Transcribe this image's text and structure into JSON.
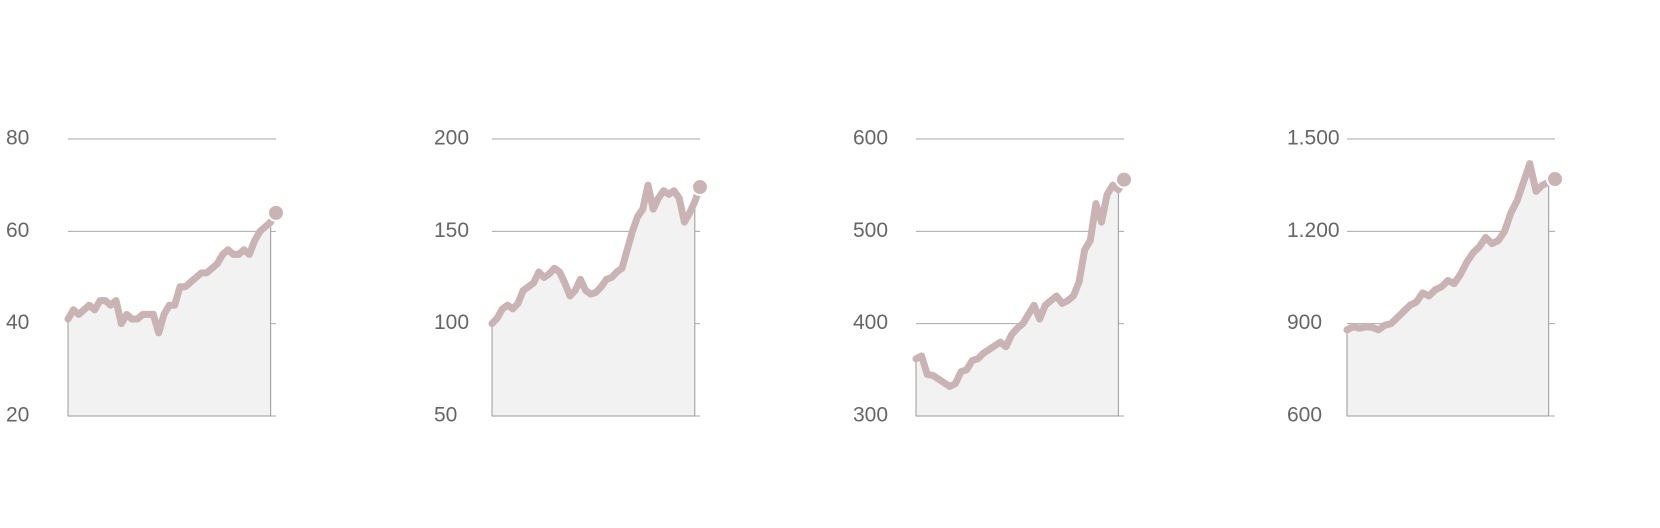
{
  "chart_data": [
    {
      "type": "line",
      "color": "#c9b3b5",
      "ylim": [
        20,
        80
      ],
      "yticks": [
        20,
        40,
        60,
        80
      ],
      "values": [
        41,
        43,
        42,
        43,
        44,
        43,
        45,
        45,
        44,
        45,
        40,
        42,
        41,
        41,
        42,
        42,
        42,
        38,
        42,
        44,
        44,
        48,
        48,
        49,
        50,
        51,
        51,
        52,
        53,
        55,
        56,
        55,
        55,
        56,
        55,
        58,
        60,
        61,
        62,
        64
      ]
    },
    {
      "type": "line",
      "color": "#c9b3b5",
      "ylim": [
        50,
        200
      ],
      "yticks": [
        50,
        100,
        150,
        200
      ],
      "values": [
        100,
        103,
        108,
        110,
        108,
        111,
        118,
        120,
        122,
        128,
        125,
        127,
        130,
        128,
        122,
        115,
        118,
        124,
        118,
        116,
        117,
        120,
        124,
        125,
        128,
        130,
        140,
        150,
        158,
        162,
        175,
        162,
        168,
        172,
        170,
        172,
        168,
        155,
        160,
        166,
        174
      ]
    },
    {
      "type": "line",
      "color": "#c9b3b5",
      "ylim": [
        300,
        600
      ],
      "yticks": [
        300,
        400,
        500,
        600
      ],
      "values": [
        362,
        365,
        345,
        344,
        340,
        336,
        332,
        335,
        348,
        350,
        360,
        362,
        368,
        372,
        376,
        380,
        375,
        388,
        395,
        400,
        410,
        420,
        405,
        420,
        425,
        430,
        422,
        425,
        430,
        445,
        480,
        490,
        530,
        510,
        540,
        550,
        545,
        556
      ]
    },
    {
      "type": "line",
      "color": "#c9b3b5",
      "ylim": [
        600,
        1500
      ],
      "yticks": [
        600,
        900,
        {
          "value": 1200,
          "label": "1.200"
        },
        {
          "value": 1500,
          "label": "1.500"
        }
      ],
      "values": [
        880,
        890,
        885,
        890,
        888,
        880,
        895,
        900,
        920,
        940,
        960,
        970,
        1000,
        990,
        1010,
        1020,
        1040,
        1030,
        1060,
        1100,
        1130,
        1150,
        1180,
        1160,
        1170,
        1200,
        1260,
        1300,
        1360,
        1420,
        1330,
        1350,
        1360,
        1370
      ]
    }
  ]
}
